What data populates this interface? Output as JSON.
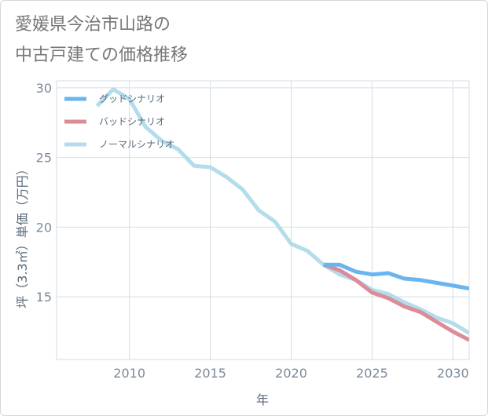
{
  "title": {
    "line1": "愛媛県今治市山路の",
    "line2": "中古戸建ての価格推移"
  },
  "chart_data": {
    "type": "line",
    "xlabel": "年",
    "ylabel": "坪（3.3㎡）単価（万円）",
    "xlim": [
      2005.5,
      2031
    ],
    "ylim": [
      10.5,
      30.5
    ],
    "xticks": [
      2010,
      2015,
      2020,
      2025,
      2030
    ],
    "yticks": [
      15,
      20,
      25,
      30
    ],
    "grid": true,
    "legend_position": "top-left",
    "series": [
      {
        "name": "グッドシナリオ",
        "color": "#6ab4f0",
        "x": [
          2022,
          2023,
          2024,
          2025,
          2026,
          2027,
          2028,
          2029,
          2030,
          2031
        ],
        "y": [
          17.3,
          17.3,
          16.8,
          16.6,
          16.7,
          16.3,
          16.2,
          16.0,
          15.8,
          15.6
        ]
      },
      {
        "name": "バッドシナリオ",
        "color": "#dc8c96",
        "x": [
          2022,
          2023,
          2024,
          2025,
          2026,
          2027,
          2028,
          2029,
          2030,
          2031
        ],
        "y": [
          17.3,
          16.9,
          16.2,
          15.3,
          14.9,
          14.3,
          13.9,
          13.2,
          12.5,
          11.9
        ]
      },
      {
        "name": "ノーマルシナリオ",
        "color": "#b4dcec",
        "x": [
          2008,
          2009,
          2010,
          2011,
          2012,
          2013,
          2014,
          2015,
          2016,
          2017,
          2018,
          2019,
          2020,
          2021,
          2022,
          2023,
          2024,
          2025,
          2026,
          2027,
          2028,
          2029,
          2030,
          2031
        ],
        "y": [
          28.7,
          29.9,
          29.2,
          27.2,
          26.2,
          25.6,
          24.4,
          24.3,
          23.6,
          22.7,
          21.2,
          20.4,
          18.8,
          18.3,
          17.3,
          16.6,
          16.2,
          15.5,
          15.2,
          14.6,
          14.1,
          13.5,
          13.1,
          12.4
        ]
      }
    ]
  }
}
